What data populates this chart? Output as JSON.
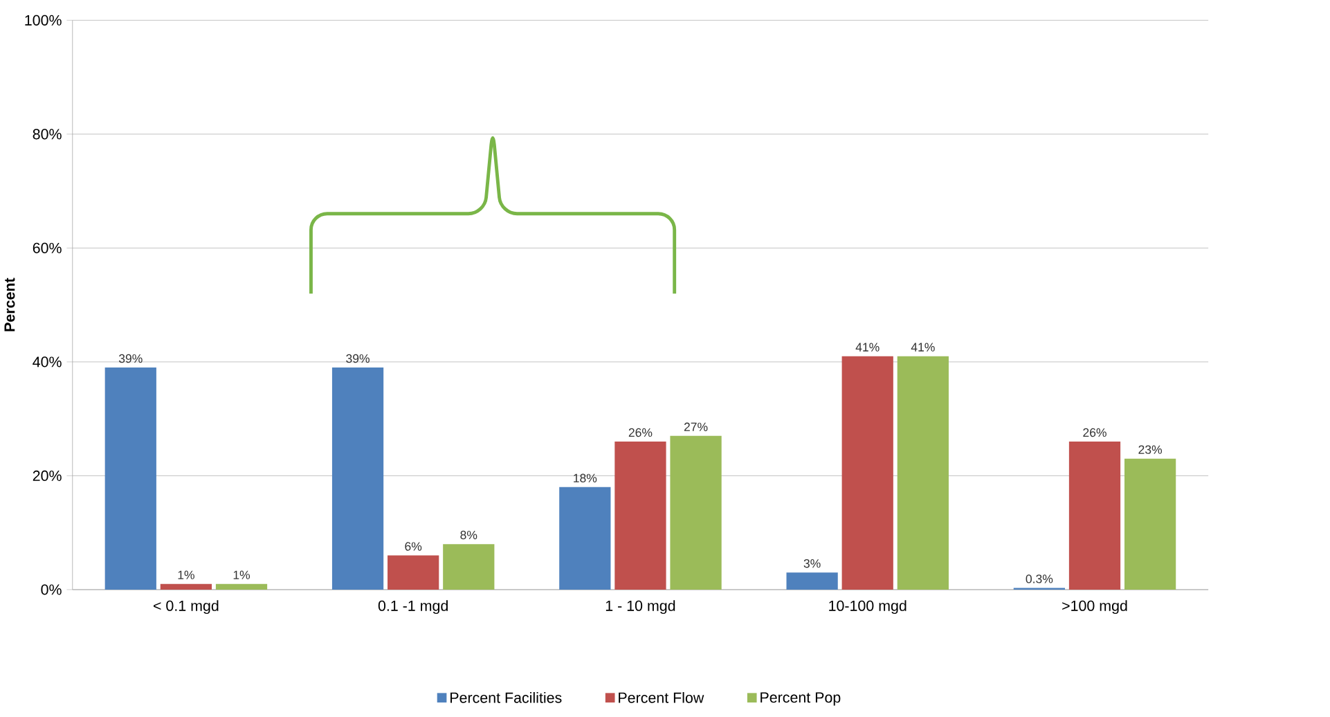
{
  "chart_data": {
    "type": "bar",
    "ylabel": "Percent",
    "categories": [
      "< 0.1 mgd",
      "0.1 -1 mgd",
      "1 - 10 mgd",
      "10-100 mgd",
      ">100 mgd"
    ],
    "series": [
      {
        "name": "Percent Facilities",
        "color": "#4f81bd",
        "values": [
          39,
          39,
          18,
          3,
          0.3
        ],
        "value_labels": [
          "39%",
          "39%",
          "18%",
          "3%",
          "0.3%"
        ]
      },
      {
        "name": "Percent Flow",
        "color": "#c0504d",
        "values": [
          1,
          6,
          26,
          41,
          26
        ],
        "value_labels": [
          "1%",
          "6%",
          "26%",
          "41%",
          "26%"
        ]
      },
      {
        "name": "Percent Pop",
        "color": "#9bbb59",
        "values": [
          1,
          8,
          27,
          41,
          23
        ],
        "value_labels": [
          "1%",
          "8%",
          "27%",
          "41%",
          "23%"
        ]
      }
    ],
    "ylim": [
      0,
      100
    ],
    "yticks": [
      {
        "value": 0,
        "label": "0%"
      },
      {
        "value": 20,
        "label": "20%"
      },
      {
        "value": 40,
        "label": "40%"
      },
      {
        "value": 60,
        "label": "60%"
      },
      {
        "value": 80,
        "label": "80%"
      },
      {
        "value": 100,
        "label": "100%"
      }
    ],
    "grid": "y",
    "legend": "bottom"
  }
}
